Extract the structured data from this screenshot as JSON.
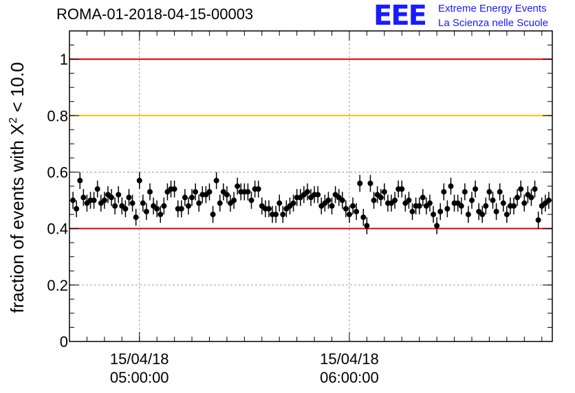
{
  "header": {
    "title": "ROMA-01-2018-04-15-00003",
    "logo_text": "EEE",
    "logo_line1": "Extreme Energy Events",
    "logo_line2": "La Scienza nelle Scuole"
  },
  "colors": {
    "reference_line": "#e00000",
    "threshold_line": "#ffc000",
    "points": "#000000",
    "logo": "#1a1aff"
  },
  "chart_data": {
    "type": "scatter",
    "title": "ROMA-01-2018-04-15-00003",
    "ylabel": "fraction of events with X² < 10.0",
    "ylabel_main": "fraction of events with X",
    "ylabel_sup": "2",
    "ylabel_tail": " < 10.0",
    "xlabel": "",
    "x_unit": "minutes after 04:40 on 15/04/18",
    "xlim": [
      0,
      138
    ],
    "ylim": [
      0,
      1.1
    ],
    "yticks": [
      0,
      0.2,
      0.4,
      0.6,
      0.8,
      1
    ],
    "ytick_labels": [
      "0",
      "0.2",
      "0.4",
      "0.6",
      "0.8",
      "1"
    ],
    "xticks": [
      {
        "x": 20,
        "line1": "15/04/18",
        "line2": "05:00:00"
      },
      {
        "x": 80,
        "line1": "15/04/18",
        "line2": "06:00:00"
      }
    ],
    "grid": true,
    "reference_lines": [
      {
        "y": 1.0,
        "color": "#e00000"
      },
      {
        "y": 0.8,
        "color": "#ffc000"
      },
      {
        "y": 0.4,
        "color": "#e00000"
      }
    ],
    "error": 0.03,
    "series": [
      {
        "x": [
          1,
          2,
          3,
          4,
          5,
          6,
          7,
          8,
          9,
          10,
          11,
          12,
          13,
          14,
          15,
          16,
          17,
          18,
          19,
          20,
          21,
          22,
          23,
          24,
          25,
          26,
          27,
          28,
          29,
          30,
          31,
          32,
          33,
          34,
          35,
          36,
          37,
          38,
          39,
          40,
          41,
          42,
          43,
          44,
          45,
          46,
          47,
          48,
          49,
          50,
          51,
          52,
          53,
          54,
          55,
          56,
          57,
          58,
          59,
          60,
          61,
          62,
          63,
          64,
          65,
          66,
          67,
          68,
          69,
          70,
          71,
          72,
          73,
          74,
          75,
          76,
          77,
          78,
          79,
          80,
          81,
          82,
          83,
          84,
          85,
          86,
          87,
          88,
          89,
          90,
          91,
          92,
          93,
          94,
          95,
          96,
          97,
          98,
          99,
          100,
          101,
          102,
          103,
          104,
          105,
          106,
          107,
          108,
          109,
          110,
          111,
          112,
          113,
          114,
          115,
          116,
          117,
          118,
          119,
          120,
          121,
          122,
          123,
          124,
          125,
          126,
          127,
          128,
          129,
          130,
          131,
          132,
          133,
          134,
          135,
          136,
          137
        ],
        "y": [
          0.5,
          0.47,
          0.57,
          0.51,
          0.49,
          0.5,
          0.5,
          0.54,
          0.49,
          0.5,
          0.52,
          0.51,
          0.48,
          0.52,
          0.48,
          0.47,
          0.51,
          0.49,
          0.44,
          0.57,
          0.49,
          0.46,
          0.53,
          0.48,
          0.47,
          0.45,
          0.48,
          0.53,
          0.54,
          0.54,
          0.47,
          0.47,
          0.51,
          0.48,
          0.51,
          0.53,
          0.49,
          0.52,
          0.52,
          0.53,
          0.45,
          0.57,
          0.49,
          0.53,
          0.52,
          0.49,
          0.5,
          0.55,
          0.53,
          0.53,
          0.53,
          0.5,
          0.54,
          0.54,
          0.48,
          0.47,
          0.47,
          0.45,
          0.45,
          0.49,
          0.45,
          0.47,
          0.48,
          0.49,
          0.51,
          0.51,
          0.52,
          0.53,
          0.51,
          0.52,
          0.52,
          0.48,
          0.49,
          0.5,
          0.48,
          0.52,
          0.51,
          0.5,
          0.47,
          0.45,
          0.48,
          0.46,
          0.56,
          0.44,
          0.41,
          0.56,
          0.5,
          0.52,
          0.51,
          0.53,
          0.49,
          0.49,
          0.5,
          0.54,
          0.54,
          0.49,
          0.5,
          0.46,
          0.48,
          0.48,
          0.51,
          0.48,
          0.49,
          0.45,
          0.41,
          0.46,
          0.53,
          0.47,
          0.55,
          0.49,
          0.49,
          0.48,
          0.53,
          0.45,
          0.5,
          0.54,
          0.46,
          0.45,
          0.48,
          0.53,
          0.5,
          0.46,
          0.53,
          0.49,
          0.45,
          0.48,
          0.48,
          0.51,
          0.54,
          0.49,
          0.52,
          0.51,
          0.54,
          0.43,
          0.48,
          0.49,
          0.5
        ]
      }
    ]
  }
}
